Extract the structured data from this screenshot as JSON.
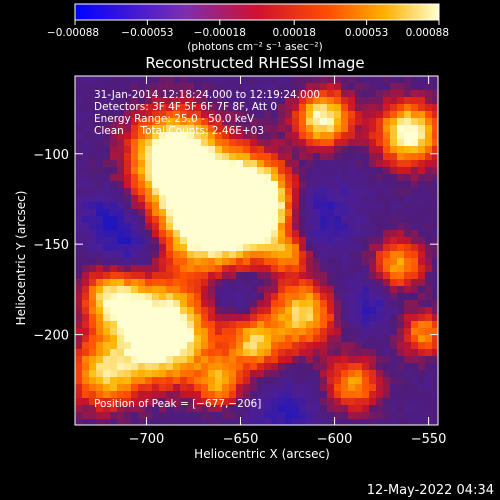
{
  "chart_data": {
    "type": "heatmap",
    "title": "Reconstructed RHESSI Image",
    "xlabel": "Heliocentric X (arcsec)",
    "ylabel": "Heliocentric Y (arcsec)",
    "xlim": [
      -738,
      -545
    ],
    "ylim": [
      -250,
      -57
    ],
    "x_ticks": [
      -700,
      -650,
      -600,
      -550
    ],
    "x_tick_labels": [
      "−700",
      "−650",
      "−600",
      "−550"
    ],
    "y_ticks": [
      -100,
      -150,
      -200
    ],
    "y_tick_labels": [
      "−100",
      "−150",
      "−200"
    ],
    "colorbar": {
      "range": [
        -0.00088,
        0.00088
      ],
      "ticks": [
        -0.00088,
        -0.00053,
        -0.00018,
        0.00018,
        0.00053,
        0.00088
      ],
      "tick_labels": [
        "−0.00088",
        "−0.00053",
        "−0.00018",
        "0.00018",
        "0.00053",
        "0.00088"
      ],
      "unit_label": "(photons cm⁻² s⁻¹ asec⁻²)",
      "colors": [
        "#0000ff",
        "#7b2fb0",
        "#d01030",
        "#ff5000",
        "#ffb000",
        "#ffffd0"
      ]
    },
    "annotations": {
      "time_range": "31-Jan-2014 12:18:24.000 to 12:19:24.000",
      "detectors": "Detectors: 3F 4F 5F 6F 7F 8F, Att 0",
      "energy": "Energy Range: 25.0 - 50.0 keV",
      "method": "Clean     Total Counts: 2.46E+03",
      "peak": "Position of Peak = [−677,−206]"
    },
    "peak": [
      -677,
      -206
    ],
    "grid": false,
    "legend": "colorbar-top"
  },
  "footer": {
    "date": "12-May-2022 04:34"
  }
}
